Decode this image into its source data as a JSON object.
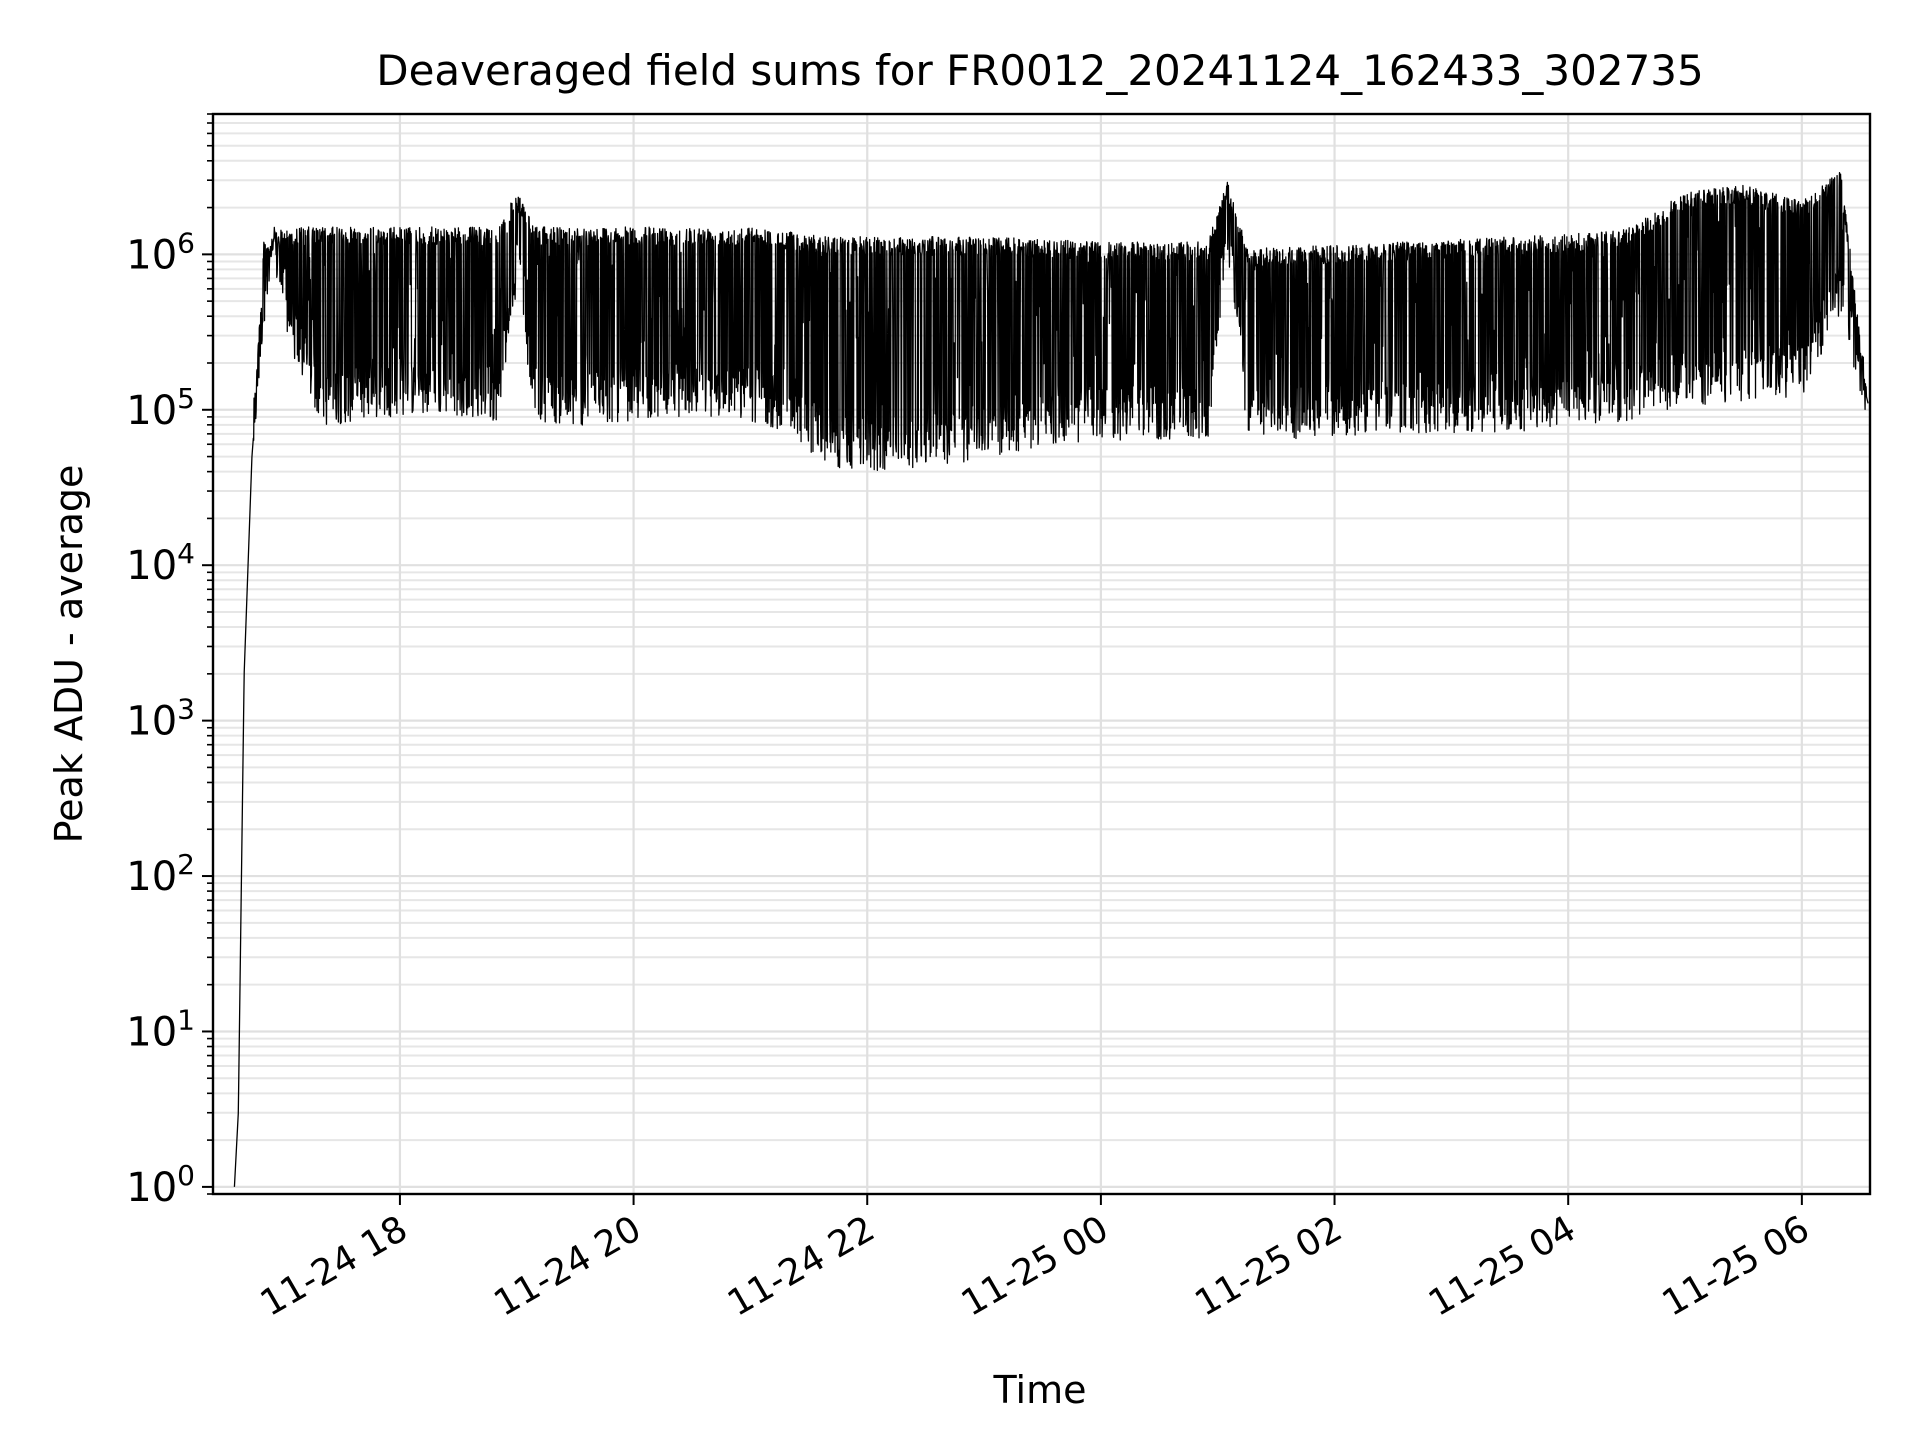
{
  "chart_data": {
    "type": "line",
    "title": "Deaveraged field sums for FR0012_20241124_162433_302735",
    "xlabel": "Time",
    "ylabel": "Peak ADU - average",
    "yscale": "log",
    "ylim": [
      0.9,
      8000000
    ],
    "xlim": [
      "2024-11-24 16:24",
      "2024-11-25 06:35"
    ],
    "grid": true,
    "x_ticks": [
      {
        "label": "11-24 18",
        "value": "2024-11-24 18:00"
      },
      {
        "label": "11-24 20",
        "value": "2024-11-24 20:00"
      },
      {
        "label": "11-24 22",
        "value": "2024-11-24 22:00"
      },
      {
        "label": "11-25 00",
        "value": "2024-11-25 00:00"
      },
      {
        "label": "11-25 02",
        "value": "2024-11-25 02:00"
      },
      {
        "label": "11-25 04",
        "value": "2024-11-25 04:00"
      },
      {
        "label": "11-25 06",
        "value": "2024-11-25 06:00"
      }
    ],
    "y_ticks": [
      {
        "base": "10",
        "exp": "0",
        "value": 1
      },
      {
        "base": "10",
        "exp": "1",
        "value": 10
      },
      {
        "base": "10",
        "exp": "2",
        "value": 100
      },
      {
        "base": "10",
        "exp": "3",
        "value": 1000
      },
      {
        "base": "10",
        "exp": "4",
        "value": 10000
      },
      {
        "base": "10",
        "exp": "5",
        "value": 100000
      },
      {
        "base": "10",
        "exp": "6",
        "value": 1000000
      }
    ],
    "series": [
      {
        "color": "#000000",
        "x": [
          "2024-11-24 16:35",
          "2024-11-24 16:37",
          "2024-11-24 16:40",
          "2024-11-24 16:44",
          "2024-11-24 16:50",
          "2024-11-24 16:56",
          "2024-11-24 17:05",
          "2024-11-24 17:20",
          "2024-11-24 17:40",
          "2024-11-24 18:00",
          "2024-11-24 18:30",
          "2024-11-24 18:50",
          "2024-11-24 19:00",
          "2024-11-24 19:10",
          "2024-11-24 19:30",
          "2024-11-24 20:00",
          "2024-11-24 20:30",
          "2024-11-24 21:00",
          "2024-11-24 21:20",
          "2024-11-24 21:40",
          "2024-11-24 22:00",
          "2024-11-24 22:20",
          "2024-11-24 22:40",
          "2024-11-24 23:00",
          "2024-11-24 23:30",
          "2024-11-25 00:00",
          "2024-11-25 00:30",
          "2024-11-25 00:55",
          "2024-11-25 01:05",
          "2024-11-25 01:15",
          "2024-11-25 01:30",
          "2024-11-25 02:00",
          "2024-11-25 02:30",
          "2024-11-25 03:00",
          "2024-11-25 03:30",
          "2024-11-25 04:00",
          "2024-11-25 04:30",
          "2024-11-25 05:00",
          "2024-11-25 05:30",
          "2024-11-25 06:00",
          "2024-11-25 06:20",
          "2024-11-25 06:34"
        ],
        "y": [
          1,
          3,
          2000,
          50000,
          500000,
          1000000,
          300000,
          110000,
          120000,
          130000,
          130000,
          120000,
          800000,
          120000,
          110000,
          120000,
          130000,
          120000,
          100000,
          60000,
          55000,
          60000,
          60000,
          70000,
          80000,
          90000,
          90000,
          85000,
          1500000,
          100000,
          90000,
          95000,
          100000,
          100000,
          100000,
          110000,
          120000,
          150000,
          160000,
          170000,
          600000,
          110000
        ],
        "envelope_upper": [
          1,
          3,
          2000,
          50000,
          1200000,
          1400000,
          1500000,
          1500000,
          1500000,
          1500000,
          1500000,
          1500000,
          2500000,
          1500000,
          1500000,
          1500000,
          1500000,
          1500000,
          1400000,
          1300000,
          1300000,
          1300000,
          1300000,
          1300000,
          1250000,
          1200000,
          1200000,
          1200000,
          3000000,
          1100000,
          1100000,
          1150000,
          1200000,
          1250000,
          1300000,
          1350000,
          1450000,
          2500000,
          2800000,
          2200000,
          3500000,
          110000
        ]
      }
    ]
  }
}
